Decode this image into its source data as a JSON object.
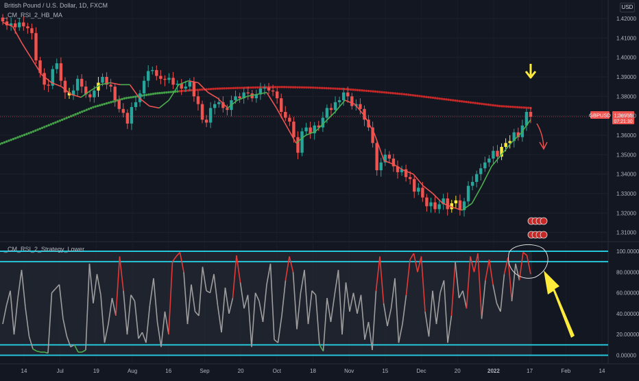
{
  "header": {
    "symbol_title": "British Pound / U.S. Dollar, 1D, FXCM",
    "indicator_upper": "_CM_RSI_2_HB_MA",
    "indicator_lower": "_CM_RSI_2_Strategy_Lower",
    "currency_button": "USD"
  },
  "price_badge": {
    "ticker": "GBPUSD",
    "price": "1.36955",
    "countdown": "07:21:30"
  },
  "colors": {
    "background": "#131722",
    "up_candle": "#26a69a",
    "down_candle": "#ef5350",
    "highlight_candle": "#ffeb3b",
    "ma_line_red": "#ef5350",
    "ma_line_green": "#4caf50",
    "dots_red": "#c62828",
    "dots_green": "#43a047",
    "rsi_line": "#9e9e9e",
    "rsi_band": "#26c6da",
    "arrow_yellow": "#ffeb3b"
  },
  "chart_data": [
    {
      "type": "candlestick",
      "title": "British Pound / U.S. Dollar, 1D, FXCM",
      "x_tick_labels": [
        "14",
        "Jul",
        "19",
        "Aug",
        "16",
        "Sep",
        "20",
        "Oct",
        "18",
        "Nov",
        "15",
        "Dec",
        "20",
        "2022",
        "17",
        "Feb",
        "14"
      ],
      "y_tick_labels": [
        "1.42000",
        "1.41000",
        "1.40000",
        "1.39000",
        "1.38000",
        "1.37000",
        "1.36000",
        "1.35000",
        "1.34000",
        "1.33000",
        "1.32000",
        "1.31000"
      ],
      "ylim": [
        1.306,
        1.426
      ],
      "series": [
        {
          "name": "GBPUSD",
          "values": [
            1.4185,
            1.4165,
            1.4175,
            1.4155,
            1.418,
            1.416,
            1.415,
            1.4125,
            1.3985,
            1.392,
            1.386,
            1.3855,
            1.394,
            1.397,
            1.388,
            1.382,
            1.3805,
            1.383,
            1.389,
            1.385,
            1.381,
            1.3795,
            1.383,
            1.387,
            1.39,
            1.386,
            1.385,
            1.378,
            1.3735,
            1.3715,
            1.366,
            1.3745,
            1.377,
            1.3815,
            1.388,
            1.393,
            1.3935,
            1.3905,
            1.389,
            1.3885,
            1.3895,
            1.386,
            1.3865,
            1.384,
            1.385,
            1.3875,
            1.38,
            1.376,
            1.368,
            1.3665,
            1.374,
            1.376,
            1.377,
            1.374,
            1.373,
            1.378,
            1.38,
            1.379,
            1.382,
            1.3815,
            1.379,
            1.381,
            1.384,
            1.3845,
            1.383,
            1.3825,
            1.379,
            1.372,
            1.369,
            1.367,
            1.359,
            1.351,
            1.362,
            1.364,
            1.361,
            1.365,
            1.364,
            1.369,
            1.374,
            1.373,
            1.377,
            1.378,
            1.382,
            1.38,
            1.375,
            1.376,
            1.3735,
            1.368,
            1.364,
            1.356,
            1.342,
            1.346,
            1.35,
            1.348,
            1.344,
            1.341,
            1.3425,
            1.3385,
            1.3375,
            1.331,
            1.333,
            1.328,
            1.3235,
            1.3255,
            1.322,
            1.3245,
            1.3275,
            1.322,
            1.325,
            1.3265,
            1.3215,
            1.326,
            1.334,
            1.336,
            1.34,
            1.343,
            1.346,
            1.348,
            1.352,
            1.349,
            1.354,
            1.356,
            1.357,
            1.3615,
            1.359,
            1.365,
            1.372,
            1.3695
          ]
        },
        {
          "name": "MA",
          "values": [
            1.418,
            1.416,
            1.407,
            1.399,
            1.391,
            1.387,
            1.385,
            1.381,
            1.3795,
            1.383,
            1.386,
            1.387,
            1.386,
            1.386,
            1.379,
            1.375,
            1.374,
            1.378,
            1.386,
            1.388,
            1.387,
            1.382,
            1.379,
            1.374,
            1.378,
            1.38,
            1.381,
            1.382,
            1.374,
            1.365,
            1.356,
            1.36,
            1.362,
            1.367,
            1.372,
            1.378,
            1.376,
            1.37,
            1.361,
            1.347,
            1.345,
            1.342,
            1.34,
            1.334,
            1.33,
            1.325,
            1.323,
            1.3215,
            1.325,
            1.334,
            1.344,
            1.35,
            1.356,
            1.361,
            1.368
          ]
        },
        {
          "name": "Long MA dots",
          "values": [
            1.3555,
            1.3615,
            1.368,
            1.3745,
            1.379,
            1.3815,
            1.383,
            1.384,
            1.3845,
            1.3848,
            1.3845,
            1.3838,
            1.3825,
            1.381,
            1.379,
            1.377,
            1.375,
            1.374
          ]
        }
      ]
    },
    {
      "type": "line",
      "title": "_CM_RSI_2_Strategy_Lower",
      "y_tick_labels": [
        "100.00000",
        "80.00000",
        "60.00000",
        "40.00000",
        "20.00000",
        "0.00000"
      ],
      "ylim": [
        -3,
        102
      ],
      "bands": [
        90,
        10
      ],
      "series": [
        {
          "name": "RSI",
          "values": [
            30,
            48,
            62,
            20,
            55,
            82,
            46,
            18,
            6,
            4,
            3,
            3,
            2,
            60,
            64,
            68,
            35,
            18,
            8,
            10,
            3,
            3,
            5,
            88,
            50,
            78,
            58,
            12,
            30,
            55,
            38,
            95,
            62,
            20,
            58,
            52,
            16,
            22,
            12,
            48,
            74,
            32,
            8,
            42,
            20,
            90,
            95,
            99,
            80,
            30,
            68,
            42,
            38,
            85,
            62,
            60,
            78,
            48,
            22,
            65,
            40,
            55,
            96,
            70,
            45,
            58,
            8,
            60,
            52,
            32,
            68,
            88,
            15,
            12,
            38,
            72,
            95,
            80,
            25,
            60,
            82,
            30,
            62,
            58,
            10,
            4,
            55,
            32,
            58,
            82,
            20,
            70,
            42,
            60,
            40,
            58,
            15,
            32,
            5,
            62,
            95,
            50,
            28,
            45,
            74,
            12,
            30,
            58,
            92,
            98,
            80,
            95,
            42,
            18,
            62,
            30,
            60,
            72,
            12,
            38,
            90,
            55,
            62,
            45,
            95,
            80,
            98,
            35,
            72,
            92,
            68,
            50,
            42,
            78,
            94,
            52,
            88,
            72,
            99,
            96,
            78
          ]
        }
      ]
    }
  ]
}
